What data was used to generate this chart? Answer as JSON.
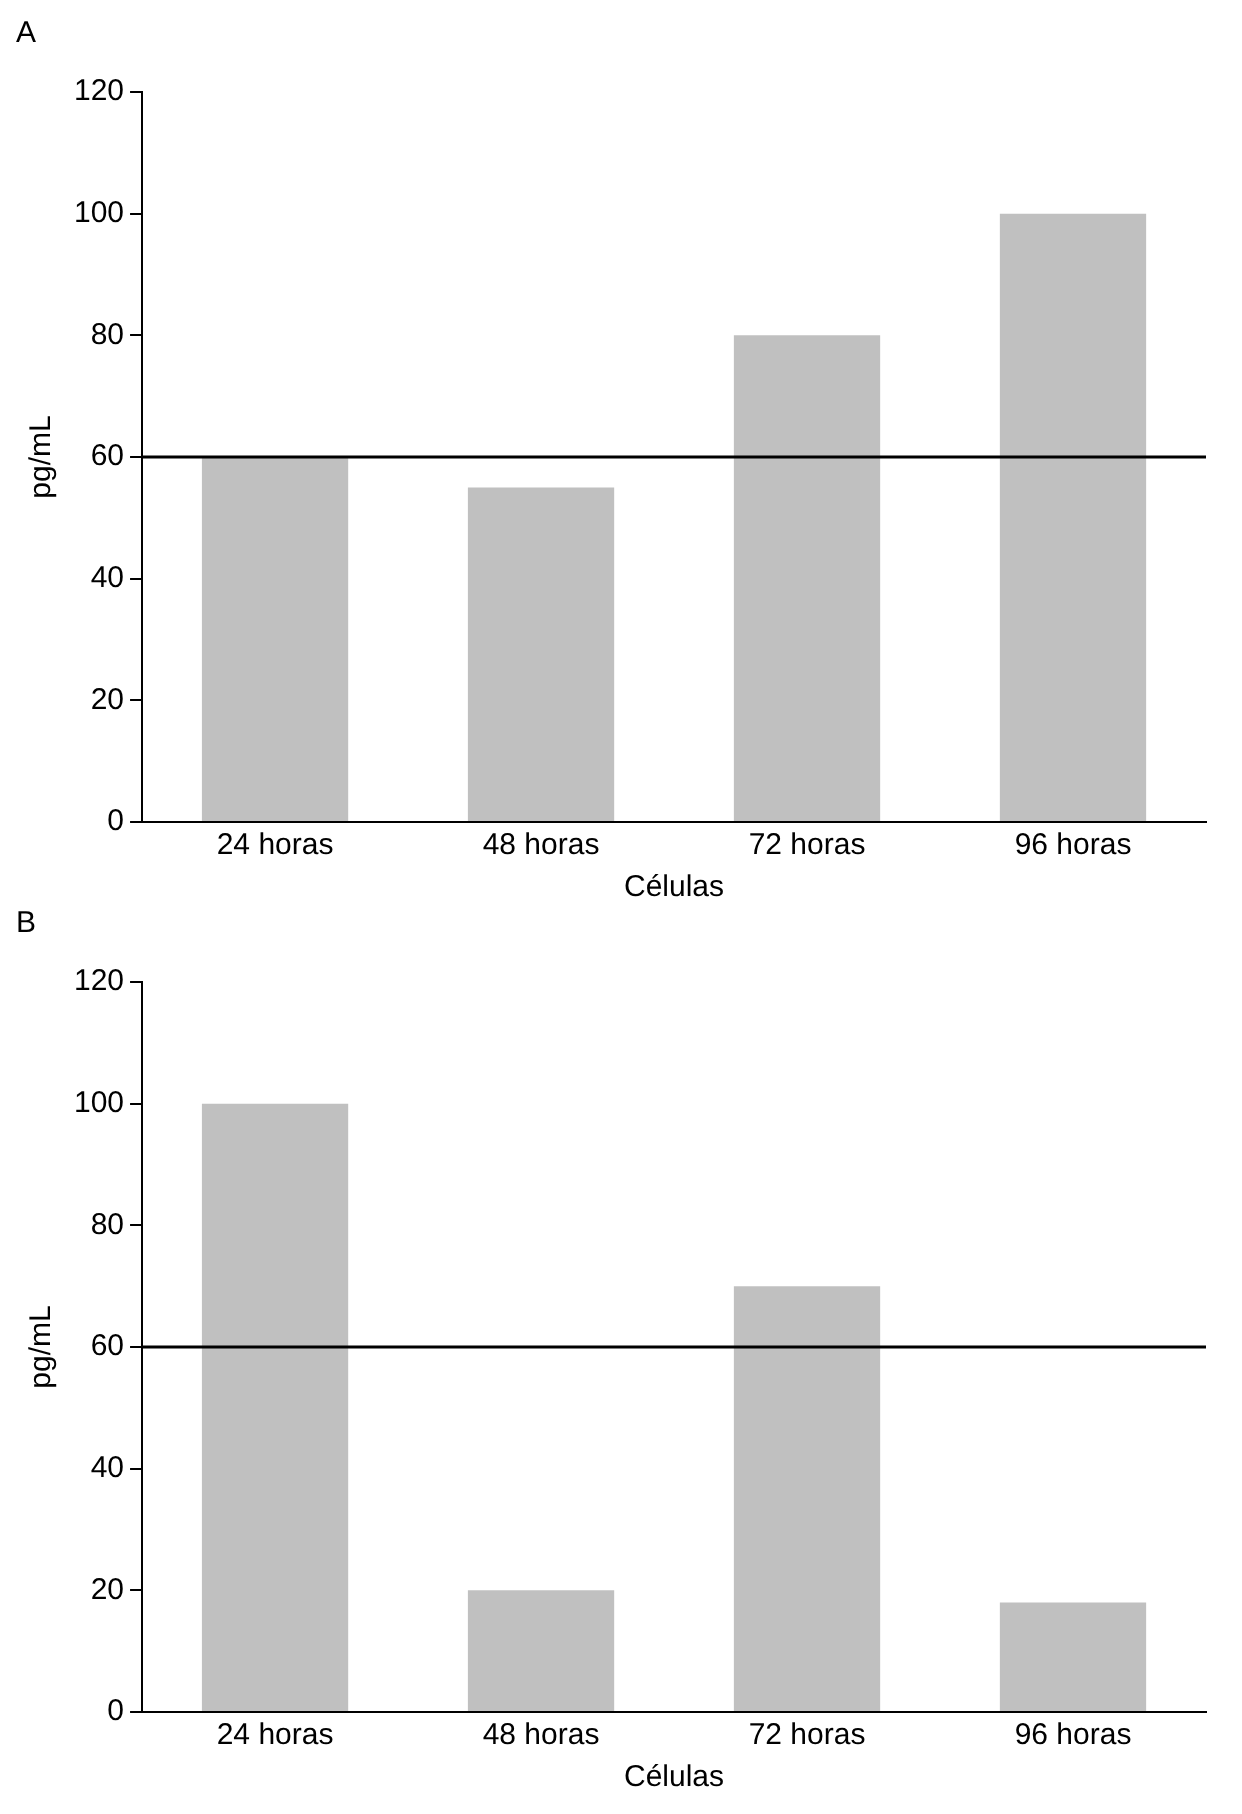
{
  "chart_data": [
    {
      "type": "bar",
      "title": "A",
      "xlabel": "Células",
      "ylabel": "pg/mL",
      "categories": [
        "24 horas",
        "48 horas",
        "72 horas",
        "96 horas"
      ],
      "values": [
        60,
        55,
        80,
        100
      ],
      "color": "#c0c0c0",
      "ylim": [
        0,
        120
      ],
      "yticks": [
        0,
        20,
        40,
        60,
        80,
        100,
        120
      ],
      "grid": false,
      "ref_lines": [
        {
          "axis": "y",
          "value": 60,
          "color": "#000000"
        }
      ]
    },
    {
      "type": "bar",
      "title": "B",
      "xlabel": "Células",
      "ylabel": "pg/mL",
      "categories": [
        "24 horas",
        "48 horas",
        "72 horas",
        "96 horas"
      ],
      "values": [
        100,
        20,
        70,
        18
      ],
      "color": "#c0c0c0",
      "ylim": [
        0,
        120
      ],
      "yticks": [
        0,
        20,
        40,
        60,
        80,
        100,
        120
      ],
      "grid": false,
      "ref_lines": [
        {
          "axis": "y",
          "value": 60,
          "color": "#000000"
        }
      ]
    }
  ]
}
